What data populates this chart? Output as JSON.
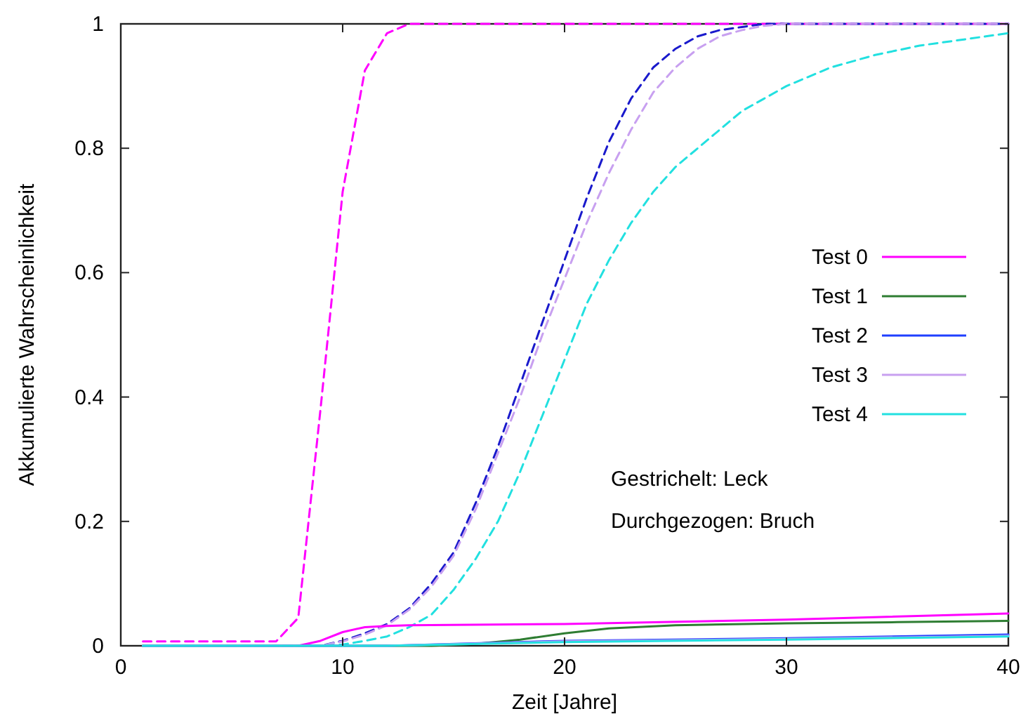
{
  "chart_data": {
    "type": "line",
    "xlabel": "Zeit [Jahre]",
    "ylabel": "Akkumulierte Wahrscheinlichkeit",
    "xlim": [
      0,
      40
    ],
    "xticks": [
      0,
      10,
      20,
      30,
      40
    ],
    "ylim": [
      0,
      1
    ],
    "yticks": [
      0,
      0.2,
      0.4,
      0.6,
      0.8,
      1
    ],
    "grid": false,
    "legend": "right",
    "marker": "none",
    "annotations": [
      "Gestrichelt: Leck",
      "Durchgezogen: Bruch"
    ],
    "series": [
      {
        "color": "#ff00ff",
        "line_style": "dashed",
        "x": [
          1,
          7,
          8,
          9,
          10,
          11,
          12,
          13,
          40
        ],
        "values": [
          0.007,
          0.007,
          0.045,
          0.38,
          0.73,
          0.925,
          0.985,
          1,
          1
        ]
      },
      {
        "color": "#1a1acc",
        "line_style": "dashed",
        "x": [
          1,
          9,
          10,
          11,
          12,
          13,
          14,
          15,
          16,
          17,
          18,
          19,
          20,
          21,
          22,
          23,
          24,
          25,
          26,
          27,
          28,
          29,
          40
        ],
        "values": [
          0,
          0,
          0.008,
          0.02,
          0.035,
          0.06,
          0.1,
          0.15,
          0.23,
          0.32,
          0.42,
          0.52,
          0.62,
          0.72,
          0.81,
          0.88,
          0.93,
          0.96,
          0.98,
          0.99,
          0.995,
          1,
          1
        ]
      },
      {
        "color": "#c8a0f0",
        "line_style": "dashed",
        "x": [
          1,
          9,
          10,
          11,
          12,
          13,
          14,
          15,
          16,
          17,
          18,
          19,
          20,
          21,
          22,
          23,
          24,
          25,
          26,
          27,
          28,
          29,
          30,
          40
        ],
        "values": [
          0,
          0,
          0.007,
          0.018,
          0.033,
          0.058,
          0.095,
          0.145,
          0.22,
          0.31,
          0.4,
          0.5,
          0.59,
          0.68,
          0.76,
          0.83,
          0.89,
          0.93,
          0.96,
          0.98,
          0.99,
          0.997,
          1,
          1
        ]
      },
      {
        "color": "#22e0e0",
        "line_style": "dashed",
        "x": [
          1,
          9,
          10,
          11,
          12,
          13,
          14,
          15,
          16,
          17,
          18,
          19,
          20,
          21,
          22,
          23,
          24,
          25,
          26,
          27,
          28,
          29,
          30,
          32,
          34,
          36,
          38,
          40
        ],
        "values": [
          0,
          0,
          0.002,
          0.008,
          0.015,
          0.03,
          0.05,
          0.09,
          0.14,
          0.2,
          0.28,
          0.37,
          0.46,
          0.55,
          0.62,
          0.68,
          0.73,
          0.77,
          0.8,
          0.83,
          0.86,
          0.88,
          0.9,
          0.93,
          0.95,
          0.965,
          0.975,
          0.985
        ]
      },
      {
        "name": "Test 0",
        "color": "#ff00ff",
        "line_style": "solid",
        "x": [
          1,
          8,
          9,
          10,
          11,
          12,
          13,
          20,
          30,
          40
        ],
        "values": [
          0,
          0,
          0.008,
          0.022,
          0.03,
          0.032,
          0.033,
          0.035,
          0.042,
          0.052
        ]
      },
      {
        "name": "Test 1",
        "color": "#2e7d32",
        "line_style": "solid",
        "x": [
          1,
          14,
          16,
          18,
          20,
          22,
          25,
          30,
          35,
          40
        ],
        "values": [
          0,
          0,
          0.003,
          0.01,
          0.02,
          0.028,
          0.033,
          0.036,
          0.038,
          0.04
        ]
      },
      {
        "name": "Test 2",
        "color": "#1f3fff",
        "line_style": "solid",
        "x": [
          1,
          12,
          20,
          30,
          40
        ],
        "values": [
          0,
          0,
          0.008,
          0.012,
          0.018
        ]
      },
      {
        "name": "Test 3",
        "color": "#c8a0f0",
        "line_style": "solid",
        "x": [
          1,
          12,
          20,
          30,
          40
        ],
        "values": [
          0,
          0,
          0.007,
          0.011,
          0.016
        ]
      },
      {
        "name": "Test 4",
        "color": "#22e0e0",
        "line_style": "solid",
        "x": [
          1,
          12,
          20,
          30,
          40
        ],
        "values": [
          0,
          0,
          0.006,
          0.01,
          0.015
        ]
      }
    ]
  }
}
